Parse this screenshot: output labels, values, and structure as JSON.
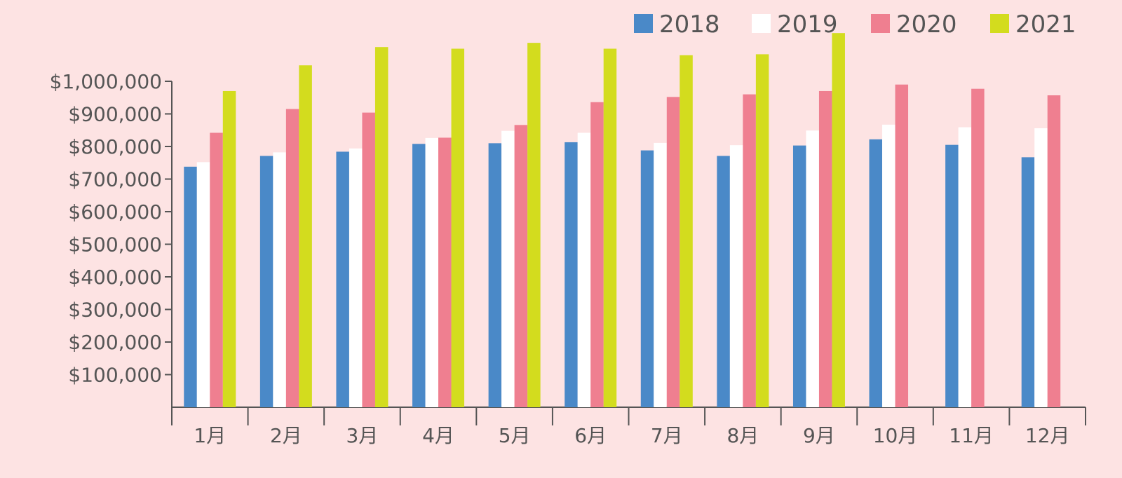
{
  "chart_data": {
    "type": "bar",
    "categories": [
      "1月",
      "2月",
      "3月",
      "4月",
      "5月",
      "6月",
      "7月",
      "8月",
      "9月",
      "10月",
      "11月",
      "12月"
    ],
    "series": [
      {
        "name": "2018",
        "color": "#4a89c8",
        "values": [
          738000,
          771000,
          784000,
          808000,
          810000,
          813000,
          788000,
          771000,
          803000,
          822000,
          805000,
          767000
        ]
      },
      {
        "name": "2019",
        "color": "#ffffff",
        "values": [
          752000,
          782000,
          794000,
          826000,
          848000,
          842000,
          811000,
          804000,
          849000,
          867000,
          859000,
          856000
        ]
      },
      {
        "name": "2020",
        "color": "#ef7f90",
        "values": [
          842000,
          915000,
          904000,
          827000,
          866000,
          936000,
          952000,
          960000,
          970000,
          990000,
          977000,
          957000
        ]
      },
      {
        "name": "2021",
        "color": "#d3dc1e",
        "values": [
          970000,
          1049000,
          1105000,
          1100000,
          1118000,
          1100000,
          1080000,
          1083000,
          1148000,
          null,
          null,
          null
        ]
      }
    ],
    "y_ticks": [
      "$100,000",
      "$200,000",
      "$300,000",
      "$400,000",
      "$500,000",
      "$600,000",
      "$700,000",
      "$800,000",
      "$900,000",
      "$1,000,000"
    ],
    "y_tick_values": [
      100000,
      200000,
      300000,
      400000,
      500000,
      600000,
      700000,
      800000,
      900000,
      1000000
    ],
    "ylim": [
      0,
      1150000
    ],
    "title": "",
    "xlabel": "",
    "ylabel": "",
    "grid": false,
    "legend_position": "top-right",
    "background_color": "#fde3e3",
    "axis_color": "#555555"
  }
}
